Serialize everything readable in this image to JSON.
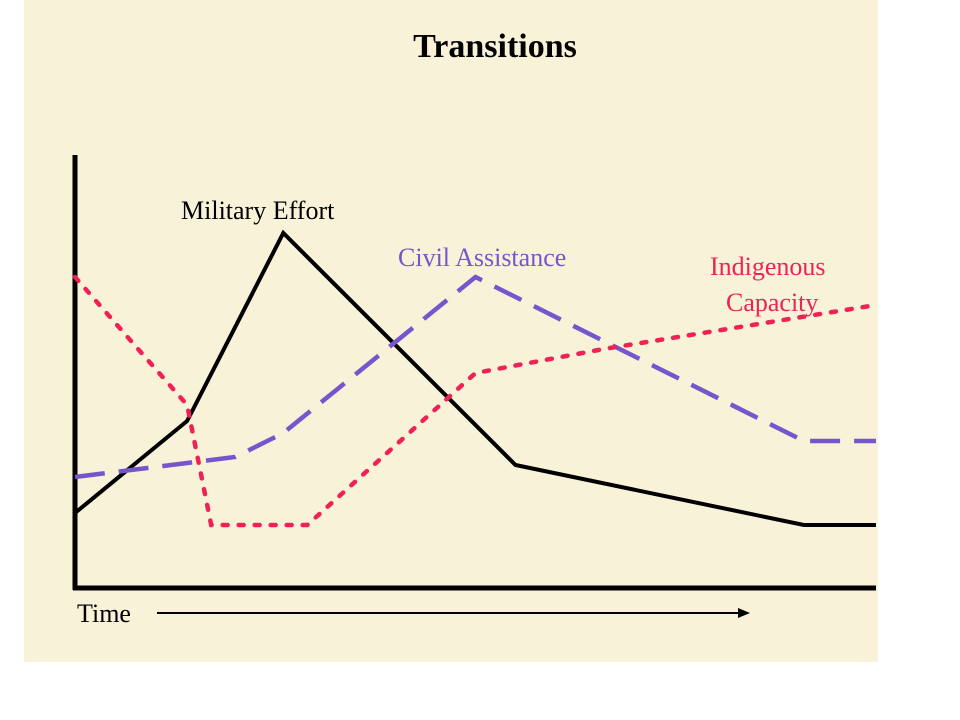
{
  "colors": {
    "background": "#f8f2d8",
    "axis": "#000000",
    "military": "#000000",
    "civil": "#7755cc",
    "indigenous": "#ee2255"
  },
  "chart_data": {
    "type": "line",
    "title": "Transitions",
    "xlabel": "Time",
    "ylabel": "",
    "xlim": [
      0,
      100
    ],
    "ylim": [
      0,
      100
    ],
    "grid": false,
    "legend": "inline labels",
    "series": [
      {
        "name": "Military Effort",
        "style": "solid",
        "color": "#000000",
        "x": [
          0,
          14,
          26,
          55,
          91,
          100
        ],
        "y": [
          13,
          36,
          83,
          25,
          10,
          10
        ]
      },
      {
        "name": "Civil Assistance",
        "style": "dashed",
        "color": "#7755cc",
        "x": [
          0,
          20,
          26,
          50,
          91,
          100
        ],
        "y": [
          22,
          27,
          33,
          72,
          31,
          31
        ]
      },
      {
        "name": "Indigenous Capacity",
        "label_lines": [
          "Indigenous",
          "Capacity"
        ],
        "style": "dotted",
        "color": "#ee2255",
        "x": [
          0,
          14,
          17,
          29,
          50,
          66,
          100
        ],
        "y": [
          72,
          40,
          10,
          10,
          48,
          54,
          65
        ]
      }
    ]
  }
}
